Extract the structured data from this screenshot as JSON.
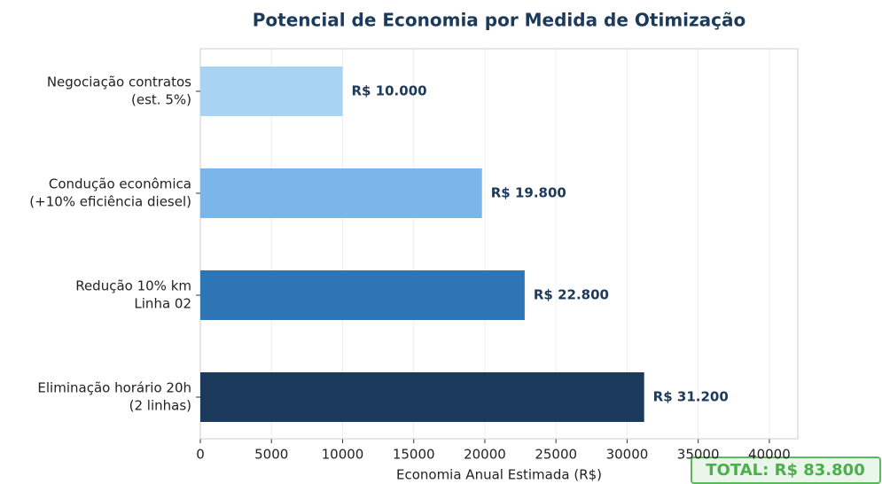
{
  "chart_data": {
    "type": "bar",
    "orientation": "horizontal",
    "title": "Potencial de Economia por Medida de Otimização",
    "xlabel": "Economia Anual Estimada (R$)",
    "categories": [
      [
        "Negociação contratos",
        "(est. 5%)"
      ],
      [
        "Condução econômica",
        "(+10% eficiência diesel)"
      ],
      [
        "Redução 10% km",
        "Linha 02"
      ],
      [
        "Eliminação horário 20h",
        "(2 linhas)"
      ]
    ],
    "values": [
      10000,
      19800,
      22800,
      31200
    ],
    "value_labels": [
      "R$ 10.000",
      "R$ 19.800",
      "R$ 22.800",
      "R$ 31.200"
    ],
    "colors": [
      "#a9d3f2",
      "#7cb5ea",
      "#2e75b6",
      "#1b3a5c"
    ],
    "xlim": [
      0,
      42000
    ],
    "xticks": [
      0,
      5000,
      10000,
      15000,
      20000,
      25000,
      30000,
      35000,
      40000
    ],
    "grid": true,
    "annotation": "TOTAL: R$ 83.800"
  }
}
